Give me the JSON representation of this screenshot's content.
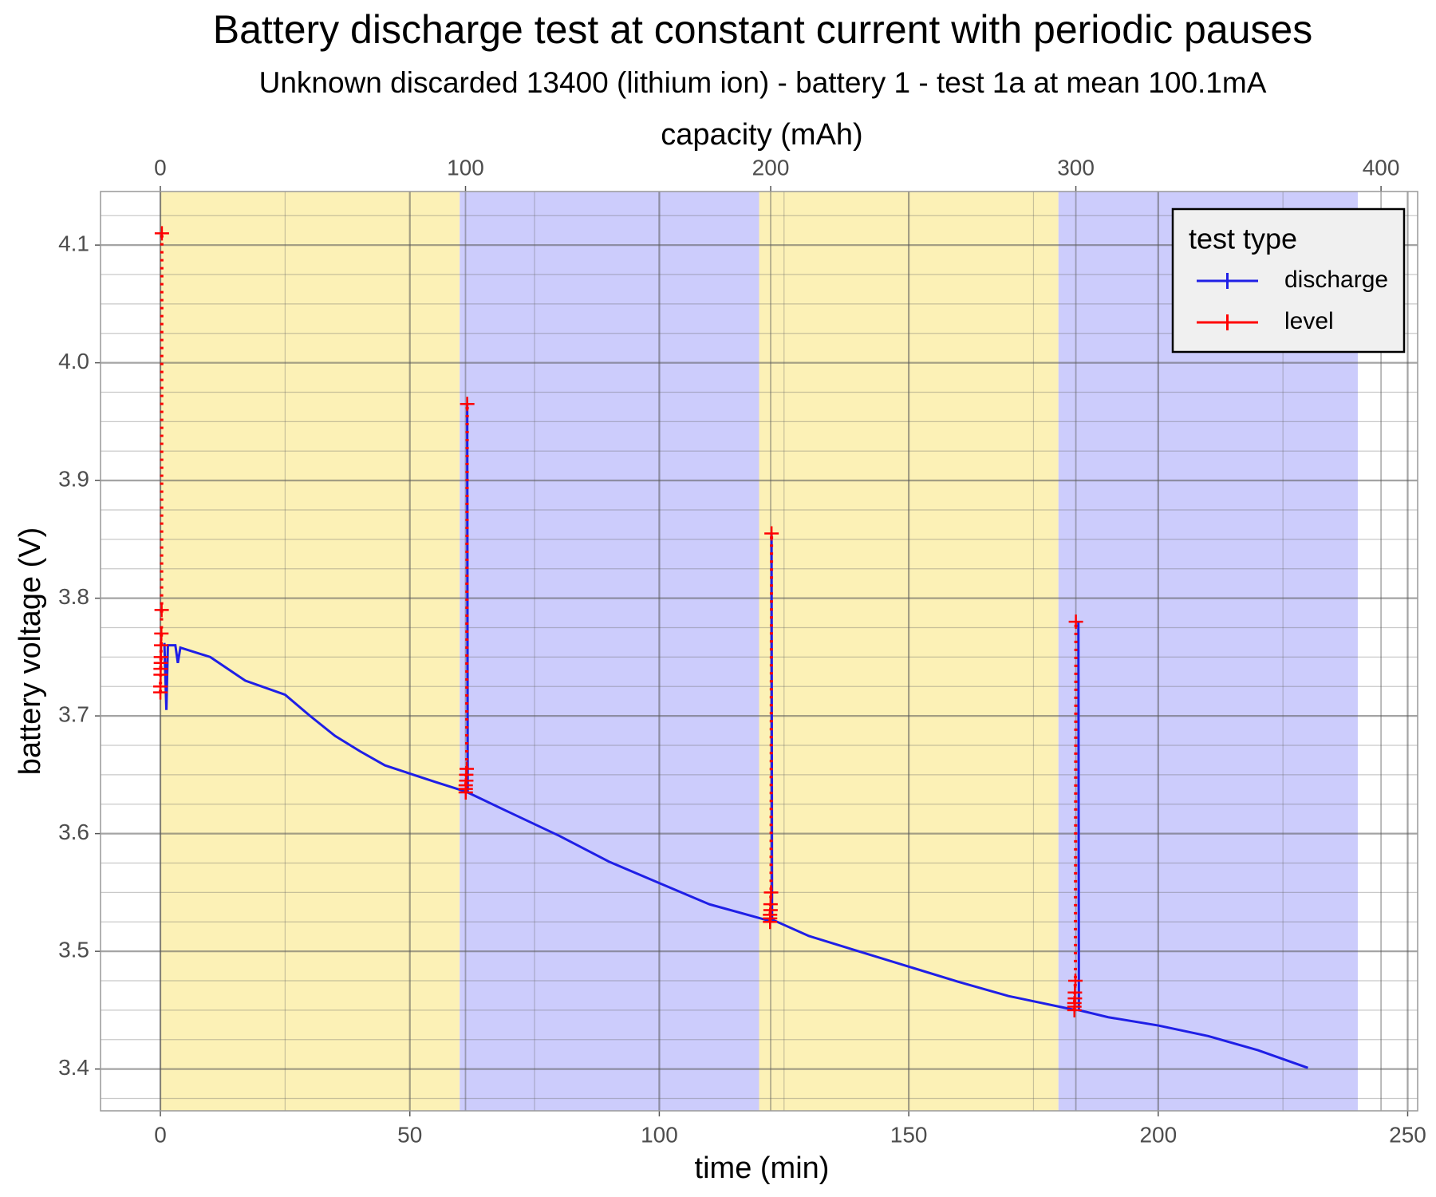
{
  "chart_data": {
    "type": "line",
    "title": "Battery discharge test at constant current with periodic pauses",
    "subtitle": "Unknown discarded 13400 (lithium ion) - battery 1 - test 1a at mean 100.1mA",
    "x_label": "time (min)",
    "x2_label": "capacity (mAh)",
    "y_label": "battery voltage (V)",
    "xlim": [
      -12,
      252
    ],
    "xticks": [
      0,
      50,
      100,
      150,
      200,
      250
    ],
    "xminorticks": [
      25,
      75,
      125,
      175,
      225
    ],
    "x2lim": [
      -19.6,
      412.0
    ],
    "x2ticks": [
      0,
      100,
      200,
      300,
      400
    ],
    "ylim": [
      3.3645,
      4.1455
    ],
    "yticks": [
      3.4,
      3.5,
      3.6,
      3.7,
      3.8,
      3.9,
      {
        "value": 4,
        "label": "4.0"
      },
      4.1
    ],
    "yminorticks": [
      3.375,
      3.425,
      3.45,
      3.475,
      3.525,
      3.55,
      3.575,
      3.625,
      3.65,
      3.675,
      3.725,
      3.75,
      3.775,
      3.825,
      3.85,
      3.875,
      3.925,
      3.95,
      3.975,
      4.025,
      4.05,
      4.075,
      4.125
    ],
    "grid": true,
    "bands": [
      {
        "xmin": 0,
        "xmax": 60,
        "color": "#fcf1b6"
      },
      {
        "xmin": 60,
        "xmax": 120,
        "color": "#ccccfc"
      },
      {
        "xmin": 120,
        "xmax": 180,
        "color": "#fcf1b6"
      },
      {
        "xmin": 180,
        "xmax": 240,
        "color": "#ccccfc"
      }
    ],
    "legend_title": "test type",
    "legend_position": "top-right",
    "series": [
      {
        "name": "discharge",
        "color": "#1f1fe6",
        "x": [
          0.8,
          1.2,
          1.5,
          3,
          3.5,
          4,
          10,
          17,
          25,
          30,
          35,
          40,
          45,
          50,
          55,
          61,
          null,
          61.5,
          61.6,
          70,
          80,
          90,
          100,
          110,
          122,
          null,
          122.5,
          122.6,
          130,
          140,
          150,
          160,
          170,
          183.5,
          null,
          184,
          184.1,
          190,
          200,
          210,
          220,
          230
        ],
        "values": [
          3.762,
          3.705,
          3.76,
          3.76,
          3.745,
          3.758,
          3.75,
          3.73,
          3.718,
          3.7,
          3.683,
          3.67,
          3.658,
          3.651,
          3.644,
          3.636,
          null,
          3.965,
          3.635,
          3.618,
          3.598,
          3.576,
          3.558,
          3.54,
          3.526,
          null,
          3.855,
          3.527,
          3.513,
          3.5,
          3.487,
          3.474,
          3.462,
          3.45,
          null,
          3.78,
          3.45,
          3.444,
          3.437,
          3.428,
          3.416,
          3.401
        ]
      },
      {
        "name": "level",
        "color": "#ff0000",
        "x": [
          0,
          0,
          0.05,
          0.05,
          0.1,
          0.1,
          0.15,
          0.2,
          0.25,
          0.3,
          null,
          61.2,
          61.2,
          61.2,
          61.3,
          61.3,
          61.4,
          61.5,
          null,
          122.2,
          122.2,
          122.2,
          122.3,
          122.3,
          122.4,
          122.5,
          null,
          183.2,
          183.2,
          183.2,
          183.3,
          183.3,
          183.4,
          183.5
        ],
        "values": [
          3.72,
          3.725,
          3.735,
          3.74,
          3.745,
          3.75,
          3.76,
          3.77,
          3.79,
          4.11,
          null,
          3.635,
          3.638,
          3.641,
          3.645,
          3.65,
          3.655,
          3.965,
          null,
          3.525,
          3.528,
          3.531,
          3.535,
          3.54,
          3.55,
          3.855,
          null,
          3.45,
          3.453,
          3.456,
          3.46,
          3.465,
          3.475,
          3.78
        ]
      }
    ]
  }
}
